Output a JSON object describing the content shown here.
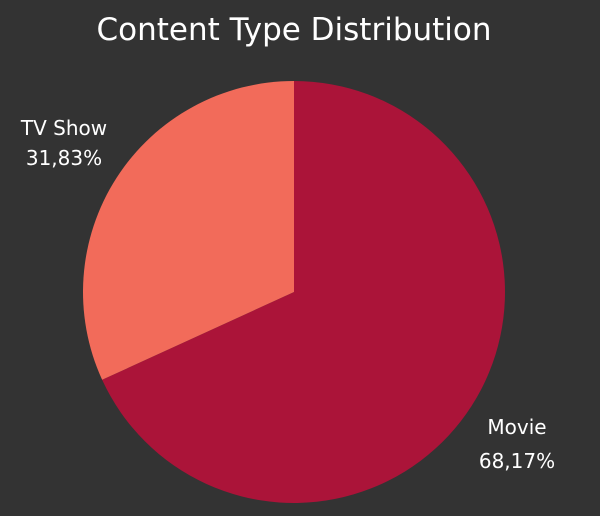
{
  "chart_data": {
    "type": "pie",
    "title": "Content Type Distribution",
    "slices": [
      {
        "name": "Movie",
        "value": 68.17,
        "value_label": "68,17%",
        "color": "#ab1439"
      },
      {
        "name": "TV Show",
        "value": 31.83,
        "value_label": "31,83%",
        "color": "#f26b5a"
      }
    ],
    "background": "#333333"
  }
}
